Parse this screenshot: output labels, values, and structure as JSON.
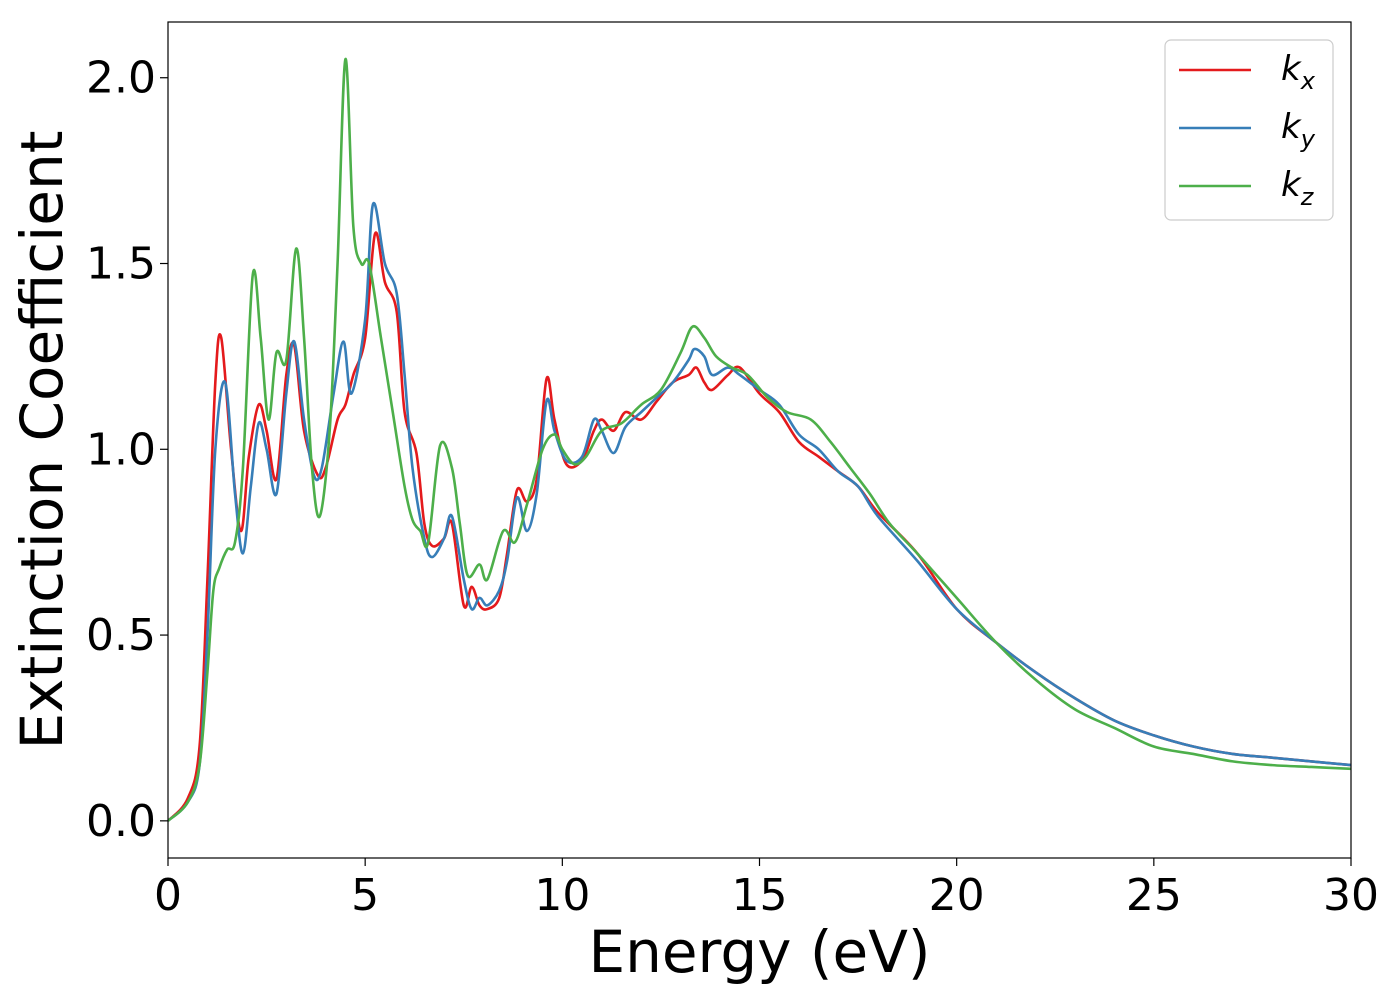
{
  "chart_data": {
    "type": "line",
    "title": "",
    "xlabel": "Energy (eV)",
    "ylabel": "Extinction Coefficient",
    "xlim": [
      0,
      30
    ],
    "ylim": [
      -0.1,
      2.15
    ],
    "xticks": [
      0,
      5,
      10,
      15,
      20,
      25,
      30
    ],
    "xtick_labels": [
      "0",
      "5",
      "10",
      "15",
      "20",
      "25",
      "30"
    ],
    "yticks": [
      0.0,
      0.5,
      1.0,
      1.5,
      2.0
    ],
    "ytick_labels": [
      "0.0",
      "0.5",
      "1.0",
      "1.5",
      "2.0"
    ],
    "grid": false,
    "legend_position": "top-right",
    "series": [
      {
        "name": "k_x",
        "label_base": "k",
        "label_sub": "x",
        "color": "#e41a1c",
        "x": [
          0,
          0.5,
          0.8,
          1.0,
          1.2,
          1.35,
          1.6,
          1.85,
          2.05,
          2.3,
          2.5,
          2.75,
          3.0,
          3.2,
          3.45,
          3.8,
          4.0,
          4.3,
          4.5,
          4.7,
          5.0,
          5.25,
          5.5,
          5.8,
          6.0,
          6.3,
          6.5,
          6.7,
          7.0,
          7.2,
          7.5,
          7.7,
          7.9,
          8.1,
          8.4,
          8.6,
          8.85,
          9.1,
          9.35,
          9.6,
          9.8,
          10.1,
          10.5,
          10.8,
          11.0,
          11.3,
          11.6,
          12.0,
          12.4,
          12.8,
          13.2,
          13.4,
          13.6,
          13.8,
          14.2,
          14.5,
          15.0,
          15.5,
          16.0,
          16.5,
          17.0,
          17.5,
          18.0,
          19.0,
          20.0,
          21.0,
          22.0,
          23.0,
          24.0,
          25.0,
          26.0,
          27.0,
          28.0,
          29.0,
          30.0
        ],
        "y": [
          0.0,
          0.06,
          0.2,
          0.65,
          1.18,
          1.3,
          1.0,
          0.78,
          0.98,
          1.12,
          1.05,
          0.92,
          1.2,
          1.28,
          1.05,
          0.93,
          0.95,
          1.08,
          1.12,
          1.2,
          1.3,
          1.58,
          1.45,
          1.37,
          1.1,
          0.99,
          0.8,
          0.74,
          0.76,
          0.8,
          0.58,
          0.63,
          0.58,
          0.57,
          0.6,
          0.72,
          0.89,
          0.86,
          0.92,
          1.19,
          1.08,
          0.96,
          0.97,
          1.05,
          1.08,
          1.05,
          1.1,
          1.08,
          1.13,
          1.18,
          1.2,
          1.22,
          1.18,
          1.16,
          1.2,
          1.22,
          1.15,
          1.1,
          1.02,
          0.98,
          0.94,
          0.9,
          0.83,
          0.72,
          0.57,
          0.48,
          0.4,
          0.33,
          0.27,
          0.23,
          0.2,
          0.18,
          0.17,
          0.16,
          0.15
        ]
      },
      {
        "name": "k_y",
        "label_base": "k",
        "label_sub": "y",
        "color": "#377eb8",
        "x": [
          0,
          0.5,
          0.8,
          1.0,
          1.2,
          1.45,
          1.7,
          1.9,
          2.1,
          2.3,
          2.5,
          2.75,
          3.0,
          3.2,
          3.45,
          3.7,
          3.9,
          4.2,
          4.45,
          4.65,
          5.0,
          5.2,
          5.5,
          5.8,
          6.0,
          6.2,
          6.5,
          6.7,
          7.0,
          7.2,
          7.5,
          7.7,
          7.9,
          8.1,
          8.4,
          8.6,
          8.85,
          9.1,
          9.35,
          9.6,
          9.8,
          10.1,
          10.5,
          10.8,
          11.0,
          11.3,
          11.6,
          12.0,
          12.4,
          12.8,
          13.2,
          13.35,
          13.6,
          13.8,
          14.2,
          14.5,
          15.0,
          15.5,
          16.0,
          16.5,
          17.0,
          17.5,
          18.0,
          19.0,
          20.0,
          21.0,
          22.0,
          23.0,
          24.0,
          25.0,
          26.0,
          27.0,
          28.0,
          29.0,
          30.0
        ],
        "y": [
          0.0,
          0.05,
          0.15,
          0.5,
          1.0,
          1.18,
          0.88,
          0.72,
          0.9,
          1.07,
          1.0,
          0.88,
          1.15,
          1.29,
          1.08,
          0.93,
          0.95,
          1.15,
          1.29,
          1.15,
          1.35,
          1.66,
          1.5,
          1.42,
          1.2,
          0.95,
          0.76,
          0.71,
          0.76,
          0.82,
          0.65,
          0.57,
          0.6,
          0.58,
          0.62,
          0.7,
          0.87,
          0.78,
          0.88,
          1.13,
          1.05,
          0.97,
          0.98,
          1.08,
          1.05,
          0.99,
          1.06,
          1.1,
          1.14,
          1.18,
          1.24,
          1.27,
          1.25,
          1.2,
          1.22,
          1.2,
          1.16,
          1.12,
          1.04,
          1.0,
          0.94,
          0.9,
          0.82,
          0.7,
          0.57,
          0.48,
          0.4,
          0.33,
          0.27,
          0.23,
          0.2,
          0.18,
          0.17,
          0.16,
          0.15
        ]
      },
      {
        "name": "k_z",
        "label_base": "k",
        "label_sub": "z",
        "color": "#4daf4a",
        "x": [
          0,
          0.5,
          0.8,
          1.0,
          1.15,
          1.3,
          1.5,
          1.7,
          1.9,
          2.15,
          2.35,
          2.55,
          2.75,
          3.0,
          3.25,
          3.45,
          3.65,
          3.85,
          4.1,
          4.3,
          4.5,
          4.7,
          4.9,
          5.1,
          5.4,
          5.7,
          6.0,
          6.2,
          6.4,
          6.6,
          6.9,
          7.2,
          7.4,
          7.6,
          7.9,
          8.1,
          8.5,
          8.8,
          9.1,
          9.5,
          9.8,
          10.0,
          10.3,
          10.6,
          11.0,
          11.5,
          12.0,
          12.5,
          13.0,
          13.3,
          13.6,
          13.9,
          14.3,
          14.7,
          15.2,
          15.7,
          16.3,
          16.8,
          17.3,
          17.8,
          18.3,
          19.0,
          20.0,
          21.0,
          22.0,
          23.0,
          24.0,
          25.0,
          26.0,
          27.0,
          28.0,
          29.0,
          30.0
        ],
        "y": [
          0.0,
          0.05,
          0.15,
          0.4,
          0.62,
          0.68,
          0.73,
          0.75,
          0.95,
          1.47,
          1.3,
          1.08,
          1.26,
          1.24,
          1.54,
          1.3,
          0.95,
          0.82,
          1.05,
          1.5,
          2.05,
          1.6,
          1.5,
          1.5,
          1.3,
          1.1,
          0.9,
          0.81,
          0.78,
          0.75,
          1.01,
          0.95,
          0.8,
          0.66,
          0.69,
          0.65,
          0.78,
          0.75,
          0.85,
          1.0,
          1.04,
          1.0,
          0.96,
          0.98,
          1.05,
          1.07,
          1.12,
          1.16,
          1.26,
          1.33,
          1.3,
          1.25,
          1.22,
          1.2,
          1.14,
          1.1,
          1.08,
          1.02,
          0.95,
          0.88,
          0.8,
          0.72,
          0.6,
          0.48,
          0.38,
          0.3,
          0.25,
          0.2,
          0.18,
          0.16,
          0.15,
          0.145,
          0.14
        ]
      }
    ]
  }
}
